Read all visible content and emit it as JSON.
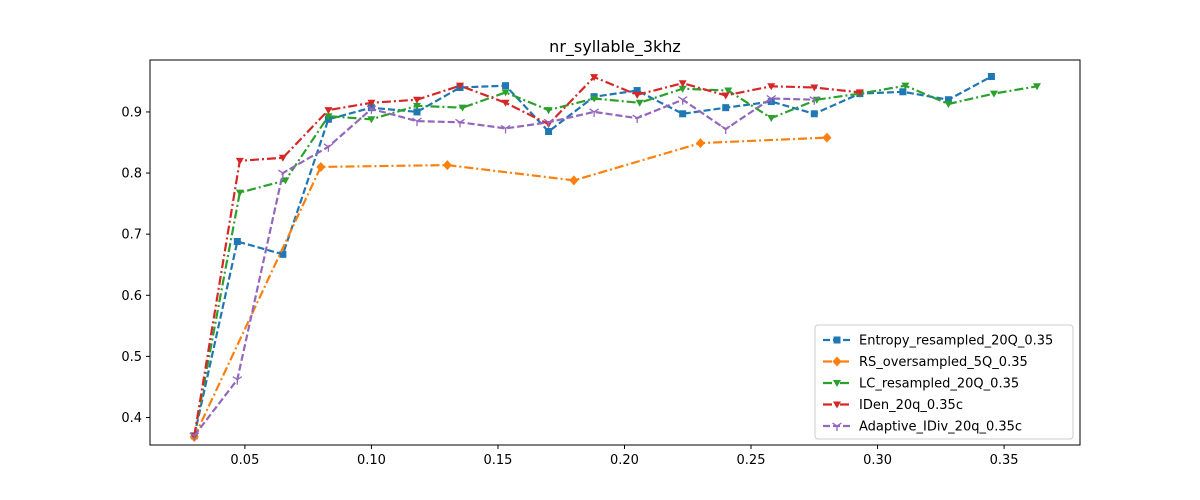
{
  "chart_data": {
    "type": "line",
    "title": "nr_syllable_3khz",
    "xlabel": "",
    "ylabel": "",
    "xlim": [
      0.0125,
      0.38
    ],
    "ylim": [
      0.355,
      0.985
    ],
    "xticks": [
      0.05,
      0.1,
      0.15,
      0.2,
      0.25,
      0.3,
      0.35
    ],
    "xtick_labels": [
      "0.05",
      "0.10",
      "0.15",
      "0.20",
      "0.25",
      "0.30",
      "0.35"
    ],
    "yticks": [
      0.4,
      0.5,
      0.6,
      0.7,
      0.8,
      0.9
    ],
    "ytick_labels": [
      "0.4",
      "0.5",
      "0.6",
      "0.7",
      "0.8",
      "0.9"
    ],
    "grid": false,
    "legend_position": "lower-right",
    "series": [
      {
        "name": "Entropy_resampled_20Q_0.35",
        "color": "#1f77b4",
        "dash": "dashed",
        "marker": "square",
        "x": [
          0.03,
          0.047,
          0.065,
          0.083,
          0.1,
          0.118,
          0.135,
          0.153,
          0.17,
          0.188,
          0.205,
          0.223,
          0.24,
          0.258,
          0.275,
          0.293,
          0.31,
          0.328,
          0.345
        ],
        "y": [
          0.37,
          0.688,
          0.667,
          0.888,
          0.907,
          0.9,
          0.94,
          0.943,
          0.868,
          0.925,
          0.935,
          0.897,
          0.907,
          0.917,
          0.897,
          0.93,
          0.933,
          0.92,
          0.958
        ]
      },
      {
        "name": "RS_oversampled_5Q_0.35",
        "color": "#ff7f0e",
        "dash": "dashdot",
        "marker": "diamond",
        "x": [
          0.03,
          0.08,
          0.13,
          0.18,
          0.23,
          0.28
        ],
        "y": [
          0.368,
          0.81,
          0.813,
          0.788,
          0.849,
          0.858
        ]
      },
      {
        "name": "LC_resampled_20Q_0.35",
        "color": "#2ca02c",
        "dash": "dashdot",
        "marker": "triangle-down",
        "x": [
          0.03,
          0.048,
          0.066,
          0.083,
          0.1,
          0.118,
          0.136,
          0.153,
          0.17,
          0.188,
          0.206,
          0.223,
          0.241,
          0.258,
          0.276,
          0.293,
          0.311,
          0.328,
          0.346,
          0.363
        ],
        "y": [
          0.37,
          0.768,
          0.788,
          0.893,
          0.888,
          0.91,
          0.907,
          0.932,
          0.903,
          0.922,
          0.915,
          0.938,
          0.935,
          0.89,
          0.92,
          0.93,
          0.943,
          0.913,
          0.93,
          0.942
        ]
      },
      {
        "name": "IDen_20q_0.35c",
        "color": "#d62728",
        "dash": "dashdot",
        "marker": "triangle-down",
        "x": [
          0.03,
          0.048,
          0.065,
          0.083,
          0.1,
          0.118,
          0.135,
          0.153,
          0.17,
          0.188,
          0.205,
          0.223,
          0.24,
          0.258,
          0.275,
          0.293
        ],
        "y": [
          0.37,
          0.82,
          0.825,
          0.903,
          0.915,
          0.92,
          0.943,
          0.915,
          0.88,
          0.957,
          0.928,
          0.947,
          0.927,
          0.942,
          0.94,
          0.932
        ]
      },
      {
        "name": "Adaptive_IDiv_20q_0.35c",
        "color": "#9467bd",
        "dash": "dashed",
        "marker": "tri",
        "x": [
          0.03,
          0.047,
          0.065,
          0.083,
          0.1,
          0.118,
          0.135,
          0.153,
          0.17,
          0.188,
          0.205,
          0.223,
          0.24,
          0.258,
          0.275
        ],
        "y": [
          0.37,
          0.462,
          0.8,
          0.843,
          0.905,
          0.885,
          0.883,
          0.873,
          0.883,
          0.9,
          0.89,
          0.92,
          0.872,
          0.922,
          0.92
        ]
      }
    ]
  }
}
